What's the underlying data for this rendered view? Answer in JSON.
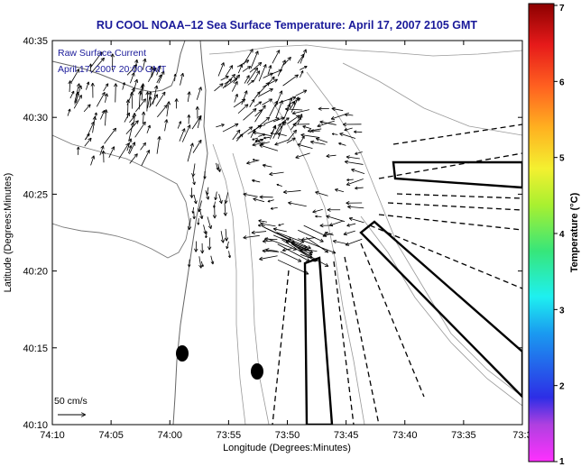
{
  "title": "RU COOL  NOAA–12  Sea Surface Temperature:  April 17, 2007 2105 GMT",
  "legend_note": {
    "line1": "Raw Surface Current",
    "line2": "April 17, 2007 20:00 GMT"
  },
  "scale_label": "50 cm/s",
  "x_axis": {
    "label": "Longitude (Degrees:Minutes)",
    "ticks": [
      "74:10",
      "74:05",
      "74:00",
      "73:55",
      "73:50",
      "73:45",
      "73:40",
      "73:35",
      "73:3"
    ]
  },
  "y_axis": {
    "label": "Latitude (Degrees:Minutes)",
    "ticks": [
      "40:35",
      "40:30",
      "40:25",
      "40:20",
      "40:15",
      "40:10"
    ]
  },
  "colorbar": {
    "label": "Temperature (°C)",
    "ticks": [
      "7",
      "6",
      "5",
      "4",
      "3",
      "2",
      "1"
    ],
    "colors": [
      "#ff30ff",
      "#8a4ad8",
      "#2d2ee6",
      "#1a9af0",
      "#1ef0f0",
      "#37e67a",
      "#a8f030",
      "#f4f030",
      "#ffb020",
      "#ff6020",
      "#e61a1a",
      "#8c0000"
    ]
  }
}
